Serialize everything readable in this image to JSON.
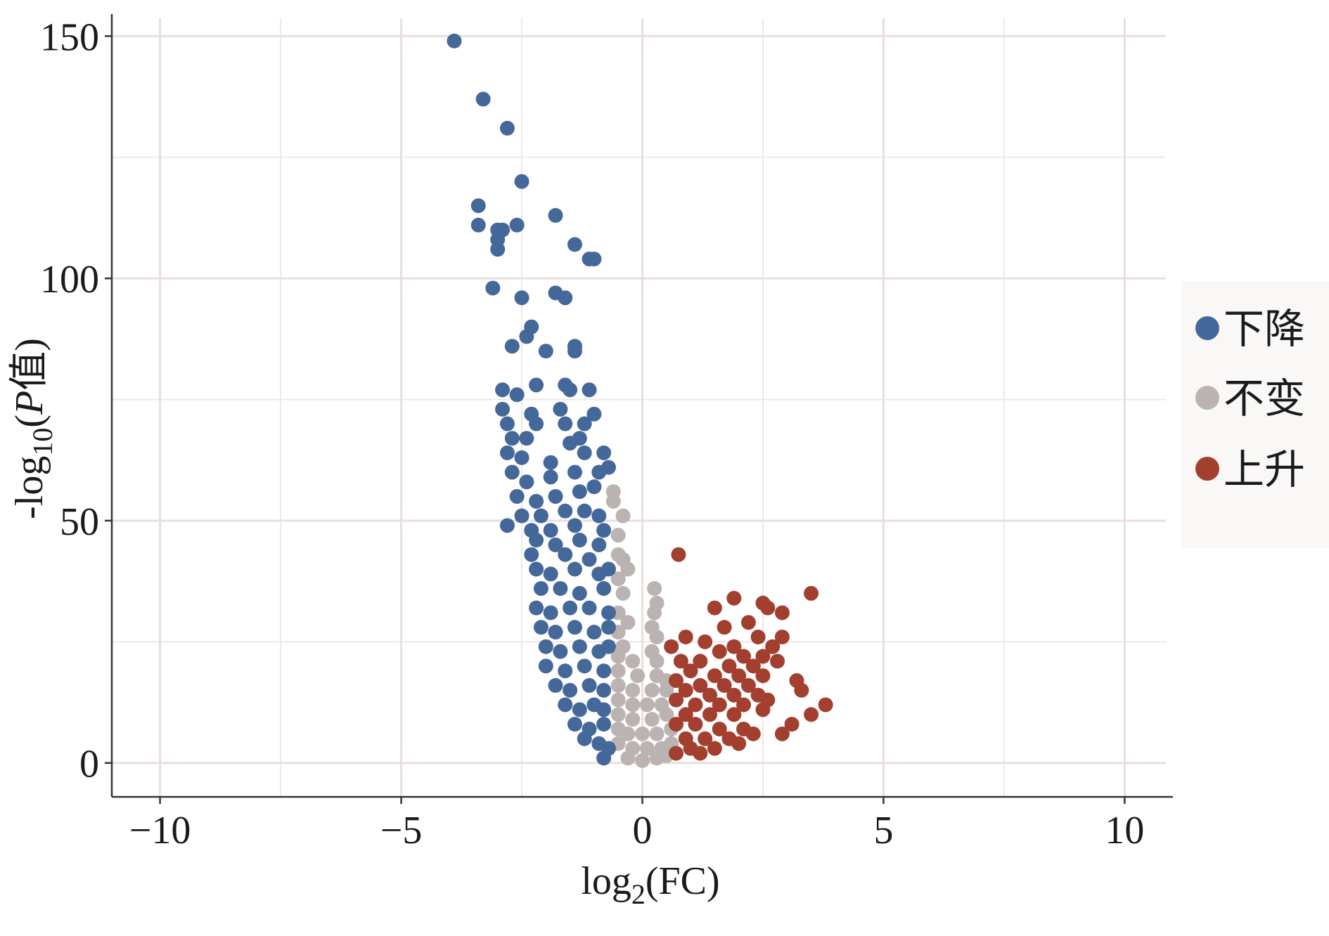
{
  "chart_data": {
    "type": "scatter",
    "title": "",
    "xlabel": "log2(FC)",
    "xlabel_parts": {
      "prefix": "log",
      "sub": "2",
      "suffix": "(FC)"
    },
    "ylabel": "-log10(P值)",
    "ylabel_parts": {
      "prefix": "-log",
      "sub": "10",
      "open": "(",
      "italic": "P",
      "suffix": "值)"
    },
    "xlim": [
      -11,
      11
    ],
    "ylim": [
      -7,
      156
    ],
    "x_ticks": [
      -10,
      -5,
      0,
      5,
      10
    ],
    "x_tick_labels": [
      "−10",
      "−5",
      "0",
      "5",
      "10"
    ],
    "y_ticks": [
      0,
      50,
      100,
      150
    ],
    "y_tick_labels": [
      "0",
      "50",
      "100",
      "150"
    ],
    "grid": true,
    "legend_position": "right",
    "series": [
      {
        "name": "下降",
        "color": "#45689a",
        "points": [
          [
            -3.9,
            149
          ],
          [
            -3.3,
            137
          ],
          [
            -2.8,
            131
          ],
          [
            -2.5,
            120
          ],
          [
            -3.4,
            115
          ],
          [
            -3.4,
            111
          ],
          [
            -2.9,
            110
          ],
          [
            -3.0,
            110
          ],
          [
            -2.6,
            111
          ],
          [
            -3.0,
            108
          ],
          [
            -3.0,
            106
          ],
          [
            -1.8,
            113
          ],
          [
            -1.4,
            107
          ],
          [
            -1.1,
            104
          ],
          [
            -1.0,
            104
          ],
          [
            -3.1,
            98
          ],
          [
            -2.5,
            96
          ],
          [
            -1.8,
            97
          ],
          [
            -1.6,
            96
          ],
          [
            -2.3,
            90
          ],
          [
            -2.4,
            88
          ],
          [
            -2.7,
            86
          ],
          [
            -2.0,
            85
          ],
          [
            -1.4,
            86
          ],
          [
            -1.4,
            85
          ],
          [
            -2.9,
            77
          ],
          [
            -2.6,
            76
          ],
          [
            -2.2,
            78
          ],
          [
            -1.6,
            78
          ],
          [
            -1.5,
            77
          ],
          [
            -1.1,
            77
          ],
          [
            -2.9,
            73
          ],
          [
            -2.3,
            72
          ],
          [
            -1.7,
            73
          ],
          [
            -1.0,
            72
          ],
          [
            -2.8,
            70
          ],
          [
            -2.2,
            70
          ],
          [
            -1.6,
            70
          ],
          [
            -1.2,
            70
          ],
          [
            -2.7,
            67
          ],
          [
            -2.4,
            67
          ],
          [
            -1.5,
            66
          ],
          [
            -1.3,
            67
          ],
          [
            -2.8,
            64
          ],
          [
            -2.5,
            63
          ],
          [
            -1.9,
            62
          ],
          [
            -1.2,
            64
          ],
          [
            -0.8,
            64
          ],
          [
            -2.7,
            60
          ],
          [
            -2.4,
            58
          ],
          [
            -1.9,
            59
          ],
          [
            -1.4,
            60
          ],
          [
            -0.9,
            60
          ],
          [
            -0.7,
            61
          ],
          [
            -2.6,
            55
          ],
          [
            -2.2,
            54
          ],
          [
            -1.8,
            55
          ],
          [
            -1.3,
            56
          ],
          [
            -1.0,
            57
          ],
          [
            -2.5,
            51
          ],
          [
            -2.1,
            51
          ],
          [
            -1.6,
            52
          ],
          [
            -1.2,
            52
          ],
          [
            -0.9,
            51
          ],
          [
            -2.8,
            49
          ],
          [
            -2.3,
            48
          ],
          [
            -1.9,
            48
          ],
          [
            -1.4,
            49
          ],
          [
            -0.8,
            48
          ],
          [
            -2.2,
            46
          ],
          [
            -1.8,
            45
          ],
          [
            -1.3,
            46
          ],
          [
            -0.9,
            45
          ],
          [
            -2.3,
            43
          ],
          [
            -1.6,
            43
          ],
          [
            -1.1,
            42
          ],
          [
            -2.2,
            40
          ],
          [
            -1.9,
            39
          ],
          [
            -1.4,
            40
          ],
          [
            -0.9,
            39
          ],
          [
            -0.7,
            40
          ],
          [
            -2.1,
            36
          ],
          [
            -1.7,
            36
          ],
          [
            -1.3,
            35
          ],
          [
            -0.8,
            36
          ],
          [
            -2.2,
            32
          ],
          [
            -1.9,
            31
          ],
          [
            -1.5,
            32
          ],
          [
            -1.1,
            32
          ],
          [
            -0.7,
            31
          ],
          [
            -2.1,
            28
          ],
          [
            -1.8,
            27
          ],
          [
            -1.4,
            28
          ],
          [
            -1.0,
            27
          ],
          [
            -0.7,
            28
          ],
          [
            -2.0,
            24
          ],
          [
            -1.7,
            23
          ],
          [
            -1.3,
            24
          ],
          [
            -0.9,
            23
          ],
          [
            -0.7,
            24
          ],
          [
            -2.0,
            20
          ],
          [
            -1.6,
            19
          ],
          [
            -1.2,
            20
          ],
          [
            -0.8,
            19
          ],
          [
            -1.8,
            16
          ],
          [
            -1.5,
            15
          ],
          [
            -1.1,
            16
          ],
          [
            -0.8,
            15
          ],
          [
            -1.6,
            12
          ],
          [
            -1.3,
            11
          ],
          [
            -1.0,
            12
          ],
          [
            -0.8,
            11
          ],
          [
            -1.4,
            8
          ],
          [
            -1.1,
            7
          ],
          [
            -0.8,
            8
          ],
          [
            -1.2,
            5
          ],
          [
            -0.9,
            4
          ],
          [
            -0.7,
            3
          ],
          [
            -0.8,
            1
          ]
        ]
      },
      {
        "name": "不变",
        "color": "#bab3b1",
        "points": [
          [
            -0.6,
            56
          ],
          [
            -0.6,
            54
          ],
          [
            -0.4,
            51
          ],
          [
            -0.5,
            47
          ],
          [
            -0.5,
            43
          ],
          [
            -0.4,
            42
          ],
          [
            -0.3,
            40
          ],
          [
            -0.5,
            38
          ],
          [
            0.25,
            36
          ],
          [
            -0.4,
            35
          ],
          [
            0.3,
            33
          ],
          [
            -0.5,
            31
          ],
          [
            0.25,
            31
          ],
          [
            -0.3,
            29
          ],
          [
            0.2,
            28
          ],
          [
            -0.5,
            27
          ],
          [
            0.3,
            26
          ],
          [
            -0.4,
            24
          ],
          [
            0.2,
            23
          ],
          [
            -0.5,
            22
          ],
          [
            -0.2,
            21
          ],
          [
            0.3,
            21
          ],
          [
            -0.5,
            19
          ],
          [
            -0.1,
            18
          ],
          [
            0.3,
            18
          ],
          [
            0.5,
            17
          ],
          [
            -0.5,
            16
          ],
          [
            -0.2,
            15
          ],
          [
            0.2,
            15
          ],
          [
            0.5,
            15
          ],
          [
            -0.5,
            13
          ],
          [
            -0.2,
            12
          ],
          [
            0.1,
            12
          ],
          [
            0.4,
            12
          ],
          [
            -0.5,
            10
          ],
          [
            -0.2,
            9
          ],
          [
            0.2,
            9
          ],
          [
            0.5,
            10
          ],
          [
            -0.5,
            7
          ],
          [
            -0.3,
            6
          ],
          [
            0.0,
            6
          ],
          [
            0.3,
            6
          ],
          [
            0.6,
            7
          ],
          [
            -0.5,
            4
          ],
          [
            -0.2,
            3
          ],
          [
            0.1,
            3
          ],
          [
            0.4,
            3
          ],
          [
            0.6,
            4
          ],
          [
            -0.3,
            1
          ],
          [
            0.0,
            0.5
          ],
          [
            0.3,
            1
          ],
          [
            0.5,
            1.5
          ]
        ]
      },
      {
        "name": "上升",
        "color": "#a33f2e",
        "points": [
          [
            0.75,
            43
          ],
          [
            3.5,
            35
          ],
          [
            1.9,
            34
          ],
          [
            2.5,
            33
          ],
          [
            2.6,
            32
          ],
          [
            1.5,
            32
          ],
          [
            2.9,
            31
          ],
          [
            2.2,
            29
          ],
          [
            1.7,
            28
          ],
          [
            2.4,
            26
          ],
          [
            2.9,
            26
          ],
          [
            0.9,
            26
          ],
          [
            1.3,
            25
          ],
          [
            1.9,
            24
          ],
          [
            2.7,
            24
          ],
          [
            0.6,
            24
          ],
          [
            1.6,
            23
          ],
          [
            2.1,
            22
          ],
          [
            2.5,
            22
          ],
          [
            0.8,
            21
          ],
          [
            1.2,
            21
          ],
          [
            1.8,
            20
          ],
          [
            2.3,
            20
          ],
          [
            2.8,
            21
          ],
          [
            1.0,
            19
          ],
          [
            1.5,
            18
          ],
          [
            2.0,
            18
          ],
          [
            2.5,
            18
          ],
          [
            0.7,
            17
          ],
          [
            1.2,
            16
          ],
          [
            1.7,
            16
          ],
          [
            2.2,
            16
          ],
          [
            3.2,
            17
          ],
          [
            0.9,
            15
          ],
          [
            1.4,
            14
          ],
          [
            1.9,
            14
          ],
          [
            2.4,
            14
          ],
          [
            3.3,
            15
          ],
          [
            0.7,
            13
          ],
          [
            1.1,
            12
          ],
          [
            1.6,
            12
          ],
          [
            2.1,
            12
          ],
          [
            2.6,
            13
          ],
          [
            3.8,
            12
          ],
          [
            0.9,
            10
          ],
          [
            1.4,
            10
          ],
          [
            1.9,
            10
          ],
          [
            2.5,
            11
          ],
          [
            3.5,
            10
          ],
          [
            0.7,
            8
          ],
          [
            1.1,
            8
          ],
          [
            1.6,
            7
          ],
          [
            2.1,
            7
          ],
          [
            3.1,
            8
          ],
          [
            0.9,
            5
          ],
          [
            1.3,
            5
          ],
          [
            1.8,
            5
          ],
          [
            2.3,
            6
          ],
          [
            2.9,
            6
          ],
          [
            1.0,
            3
          ],
          [
            1.5,
            3
          ],
          [
            0.7,
            2
          ],
          [
            1.2,
            2
          ],
          [
            2.0,
            4
          ]
        ]
      }
    ]
  }
}
